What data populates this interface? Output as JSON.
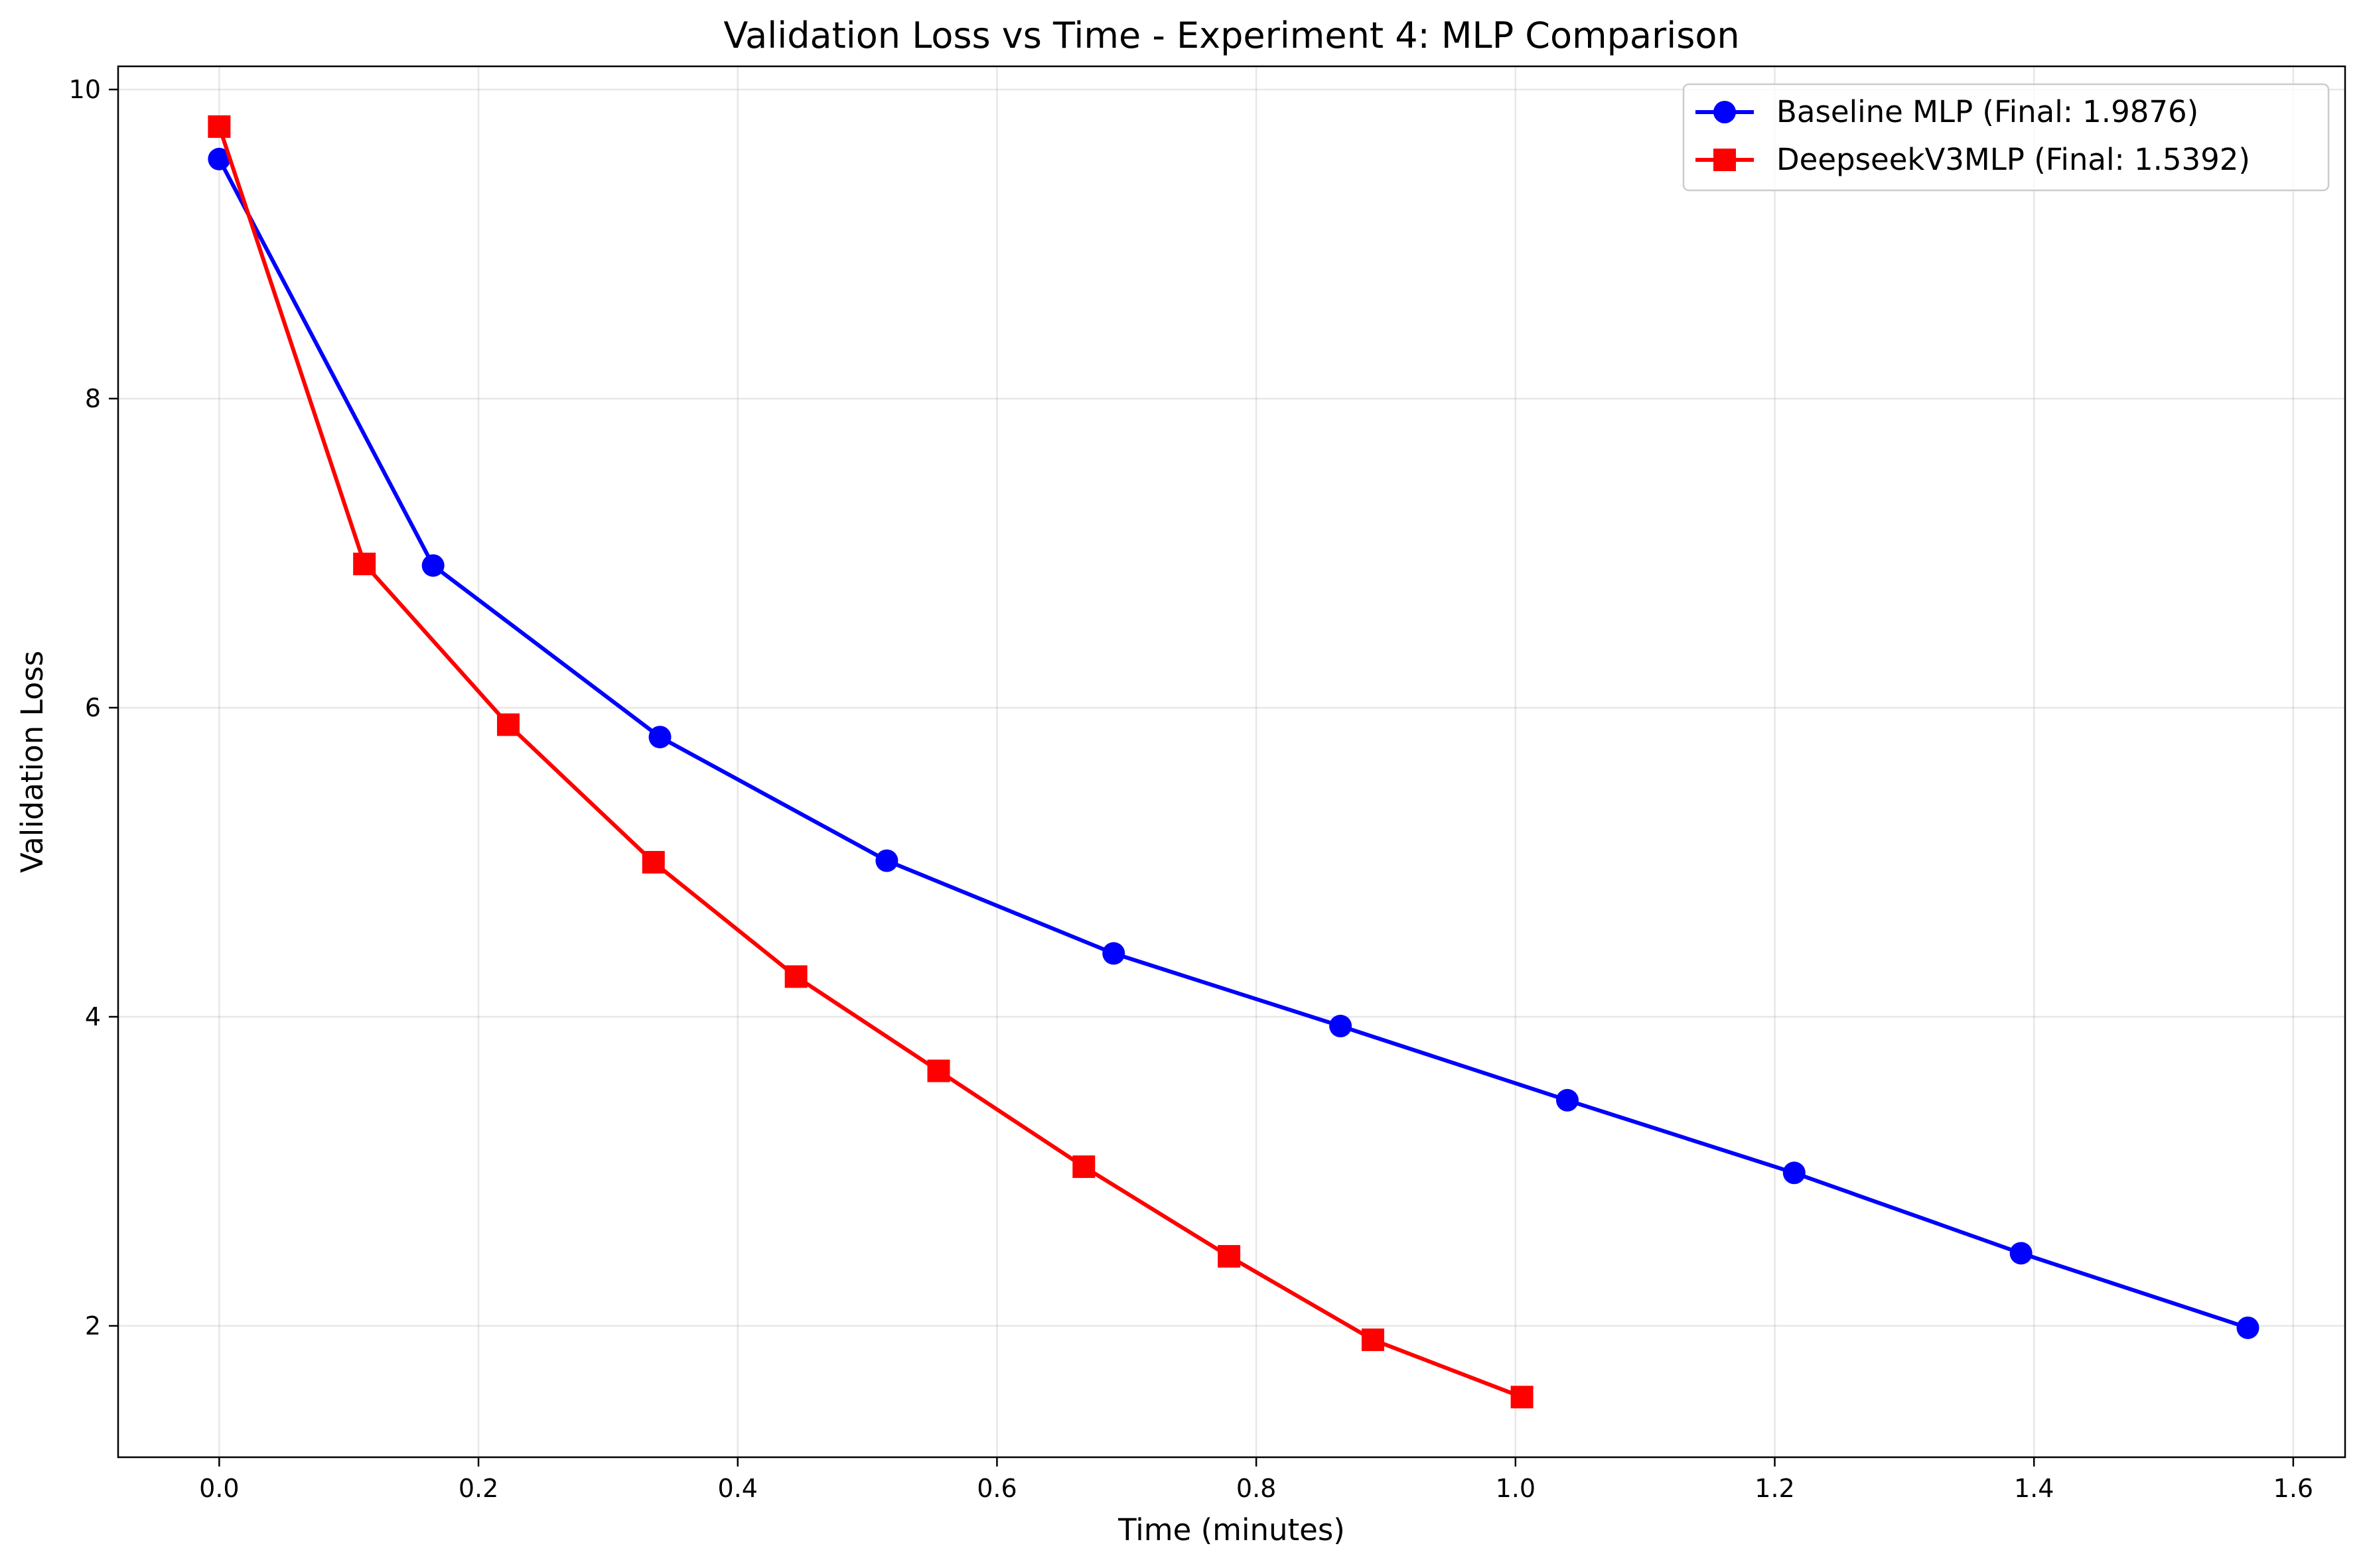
{
  "chart_data": {
    "type": "line",
    "title": "Validation Loss vs Time - Experiment 4: MLP Comparison",
    "xlabel": "Time (minutes)",
    "ylabel": "Validation Loss",
    "xlim": [
      -0.078,
      1.64
    ],
    "ylim": [
      1.15,
      10.15
    ],
    "xticks": [
      0.0,
      0.2,
      0.4,
      0.6,
      0.8,
      1.0,
      1.2,
      1.4,
      1.6
    ],
    "xtick_labels": [
      "0.0",
      "0.2",
      "0.4",
      "0.6",
      "0.8",
      "1.0",
      "1.2",
      "1.4",
      "1.6"
    ],
    "yticks": [
      2,
      4,
      6,
      8,
      10
    ],
    "ytick_labels": [
      "2",
      "4",
      "6",
      "8",
      "10"
    ],
    "grid": true,
    "legend_position": "top-right",
    "series": [
      {
        "name": "Baseline MLP (Final: 1.9876)",
        "color": "#0000ff",
        "marker": "circle",
        "x": [
          0.0,
          0.165,
          0.34,
          0.515,
          0.69,
          0.865,
          1.04,
          1.215,
          1.39,
          1.565
        ],
        "y": [
          9.55,
          6.92,
          5.81,
          5.01,
          4.41,
          3.94,
          3.46,
          2.99,
          2.47,
          1.9876
        ]
      },
      {
        "name": "DeepseekV3MLP (Final: 1.5392)",
        "color": "#ff0000",
        "marker": "square",
        "x": [
          0.0,
          0.112,
          0.223,
          0.335,
          0.445,
          0.555,
          0.667,
          0.779,
          0.89,
          1.005
        ],
        "y": [
          9.76,
          6.93,
          5.89,
          5.0,
          4.26,
          3.65,
          3.03,
          2.45,
          1.91,
          1.5392
        ]
      }
    ]
  }
}
